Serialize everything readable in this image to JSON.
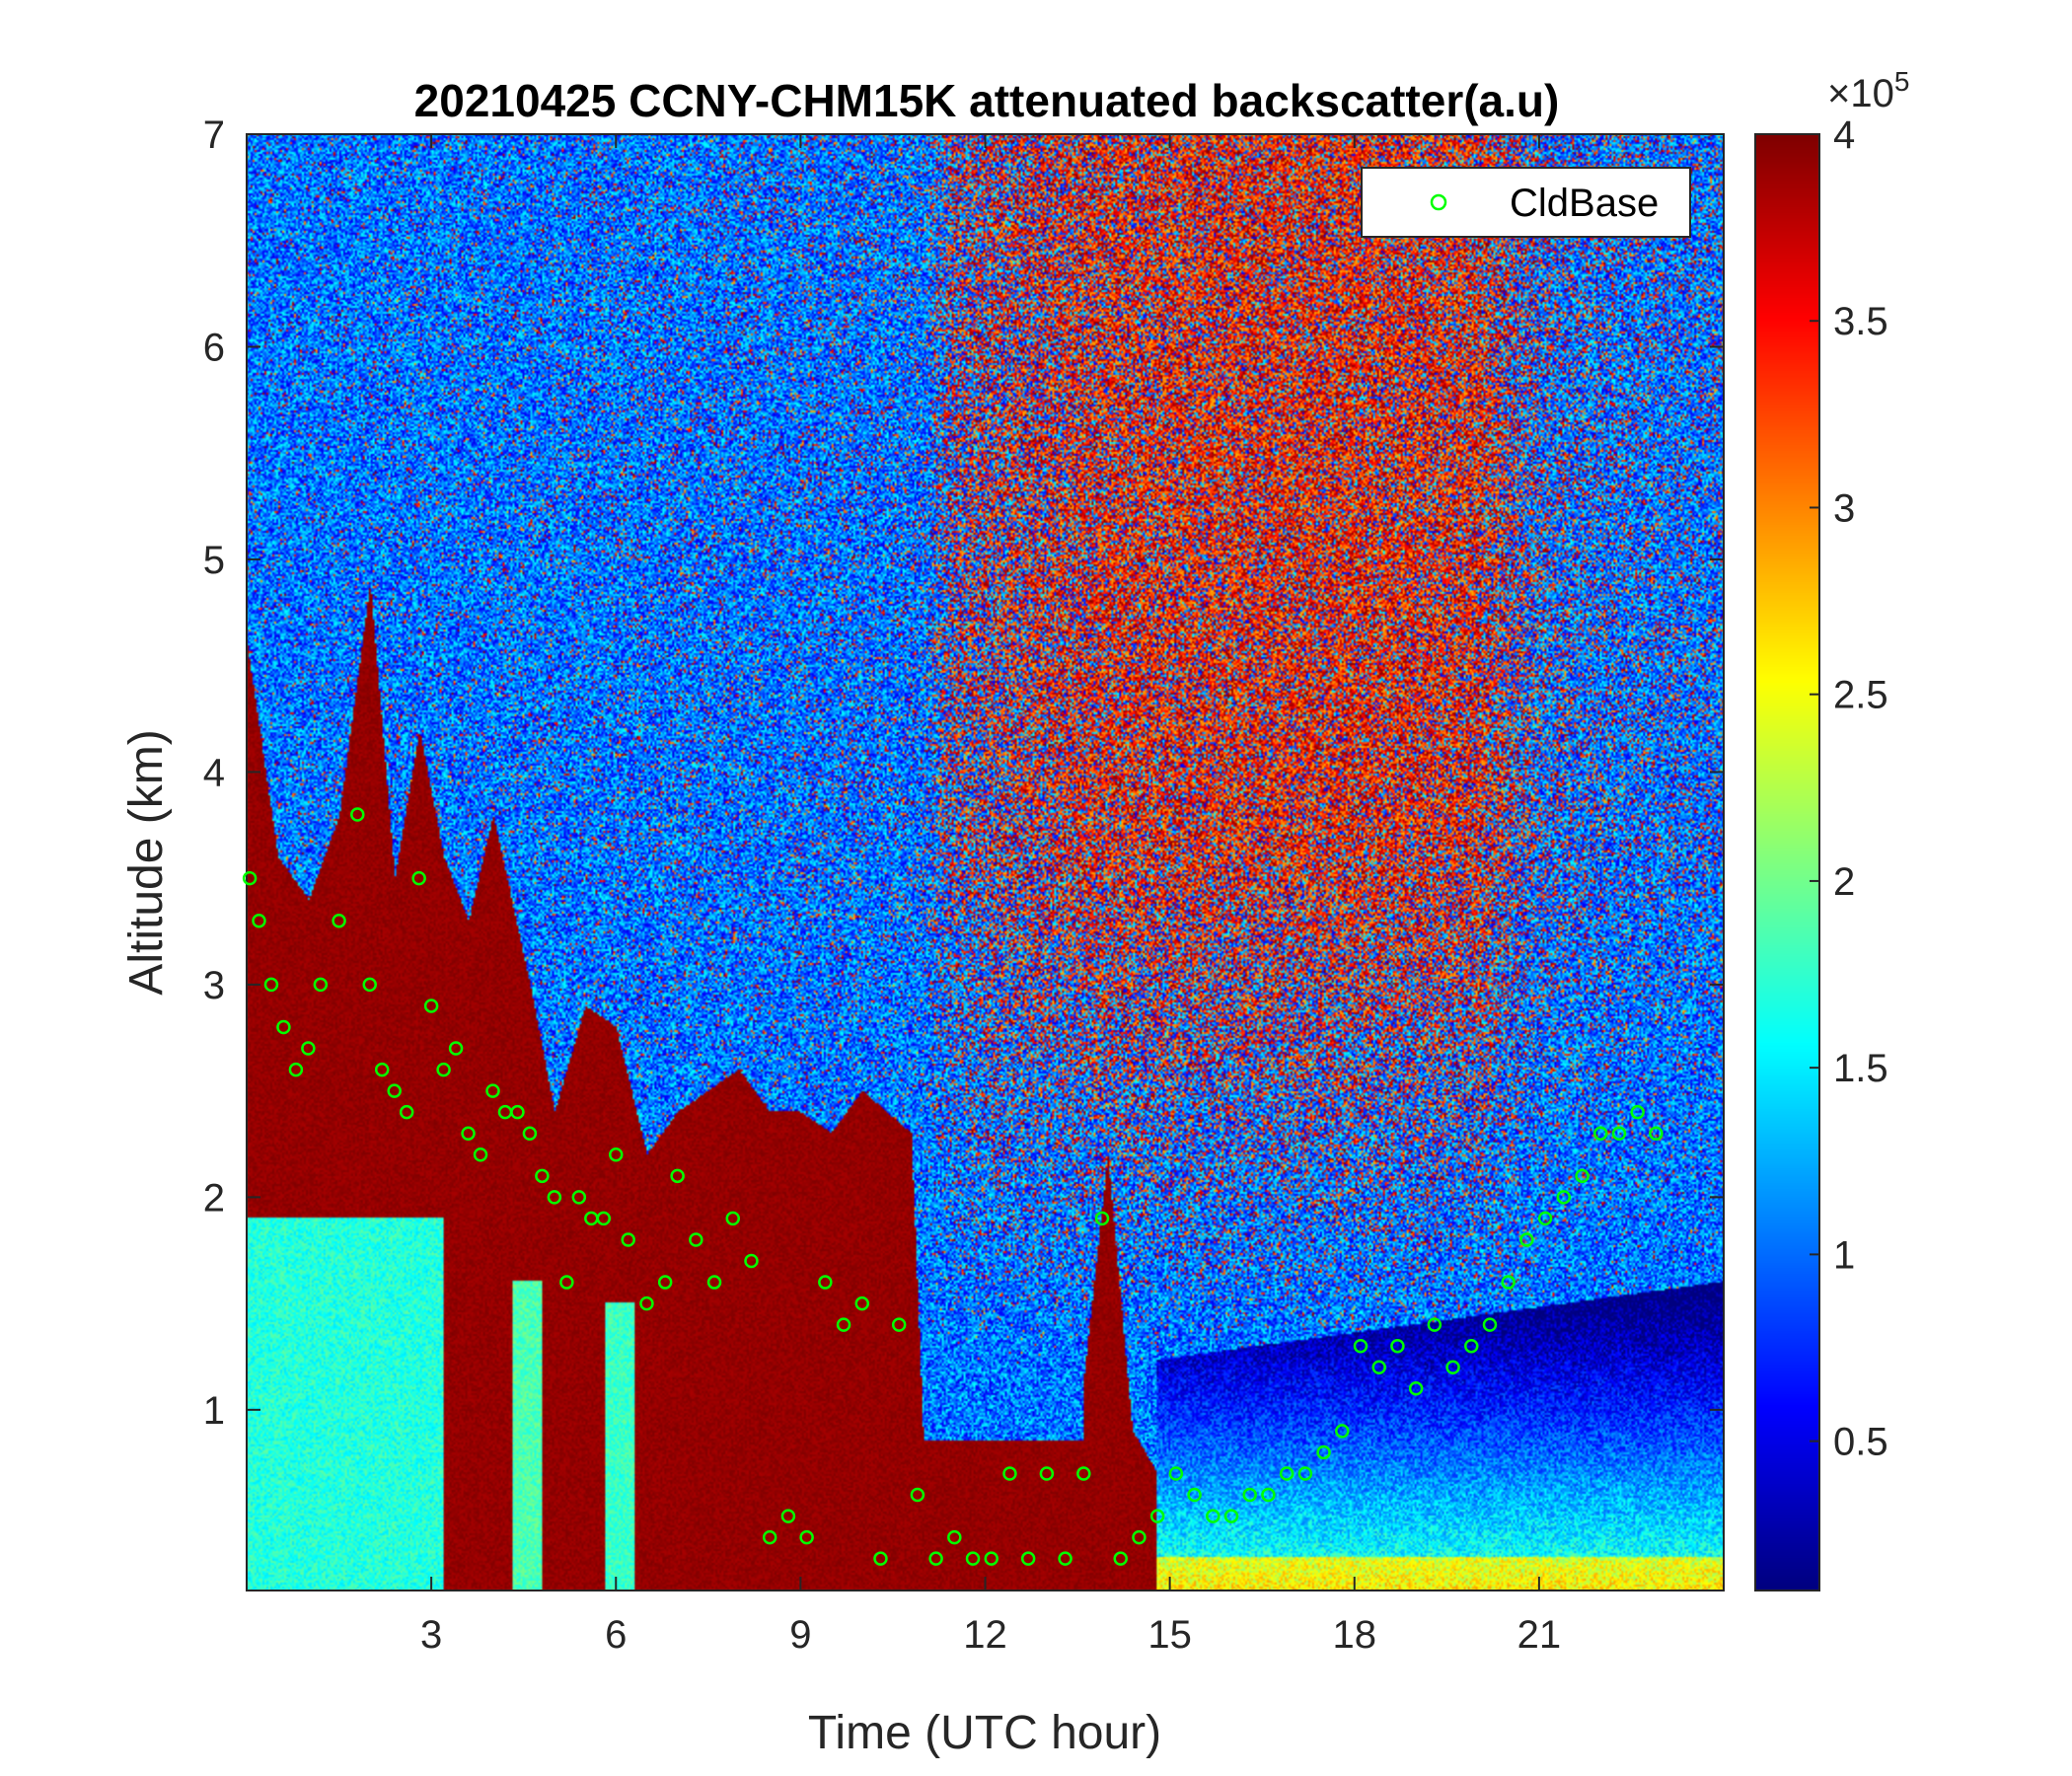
{
  "chart_data": {
    "type": "heatmap",
    "title": "20210425 CCNY-CHM15K attenuated backscatter(a.u)",
    "xlabel": "Time (UTC hour)",
    "ylabel": "Altitude (km)",
    "xlim": [
      0,
      24
    ],
    "ylim": [
      0.15,
      7
    ],
    "xticks": [
      3,
      6,
      9,
      12,
      15,
      18,
      21
    ],
    "xtick_labels": [
      "3",
      "6",
      "9",
      "12",
      "15",
      "18",
      "21"
    ],
    "yticks": [
      1,
      2,
      3,
      4,
      5,
      6,
      7
    ],
    "ytick_labels": [
      "1",
      "2",
      "3",
      "4",
      "5",
      "6",
      "7"
    ],
    "colormap": "jet",
    "colorbar": {
      "range": [
        0.1,
        4
      ],
      "ticks": [
        0.5,
        1,
        1.5,
        2,
        2.5,
        3,
        3.5,
        4
      ],
      "tick_labels": [
        "0.5",
        "1",
        "1.5",
        "2",
        "2.5",
        "3",
        "3.5",
        "4"
      ],
      "multiplier_base": "×10",
      "multiplier_exp": "5"
    },
    "legend": {
      "position": "top-right",
      "entries": [
        "CldBase"
      ]
    },
    "series": [
      {
        "name": "CldBase",
        "marker": "circle",
        "color": "#00ff00",
        "x": [
          0.05,
          0.2,
          0.4,
          0.6,
          0.8,
          1.0,
          1.2,
          1.5,
          1.8,
          2.0,
          2.2,
          2.4,
          2.6,
          2.8,
          3.0,
          3.2,
          3.4,
          3.6,
          3.8,
          4.0,
          4.2,
          4.4,
          4.6,
          4.8,
          5.0,
          5.2,
          5.4,
          5.6,
          5.8,
          6.0,
          6.2,
          6.5,
          6.8,
          7.0,
          7.3,
          7.6,
          7.9,
          8.2,
          8.5,
          8.8,
          9.1,
          9.4,
          9.7,
          10.0,
          10.3,
          10.6,
          10.9,
          11.2,
          11.5,
          11.8,
          12.1,
          12.4,
          12.7,
          13.0,
          13.3,
          13.6,
          13.9,
          14.2,
          14.5,
          14.8,
          15.1,
          15.4,
          15.7,
          16.0,
          16.3,
          16.6,
          16.9,
          17.2,
          17.5,
          17.8,
          18.1,
          18.4,
          18.7,
          19.0,
          19.3,
          19.6,
          19.9,
          20.2,
          20.5,
          20.8,
          21.1,
          21.4,
          21.7,
          22.0,
          22.3,
          22.6,
          22.9
        ],
        "y": [
          3.5,
          3.3,
          3.0,
          2.8,
          2.6,
          2.7,
          3.0,
          3.3,
          3.8,
          3.0,
          2.6,
          2.5,
          2.4,
          3.5,
          2.9,
          2.6,
          2.7,
          2.3,
          2.2,
          2.5,
          2.4,
          2.4,
          2.3,
          2.1,
          2.0,
          1.6,
          2.0,
          1.9,
          1.9,
          2.2,
          1.8,
          1.5,
          1.6,
          2.1,
          1.8,
          1.6,
          1.9,
          1.7,
          0.4,
          0.5,
          0.4,
          1.6,
          1.4,
          1.5,
          0.3,
          1.4,
          0.6,
          0.3,
          0.4,
          0.3,
          0.3,
          0.7,
          0.3,
          0.7,
          0.3,
          0.7,
          1.9,
          0.3,
          0.4,
          0.5,
          0.7,
          0.6,
          0.5,
          0.5,
          0.6,
          0.6,
          0.7,
          0.7,
          0.8,
          0.9,
          1.3,
          1.2,
          1.3,
          1.1,
          1.4,
          1.2,
          1.3,
          1.4,
          1.6,
          1.8,
          1.9,
          2.0,
          2.1,
          2.3,
          2.3,
          2.4,
          2.3
        ]
      }
    ]
  }
}
